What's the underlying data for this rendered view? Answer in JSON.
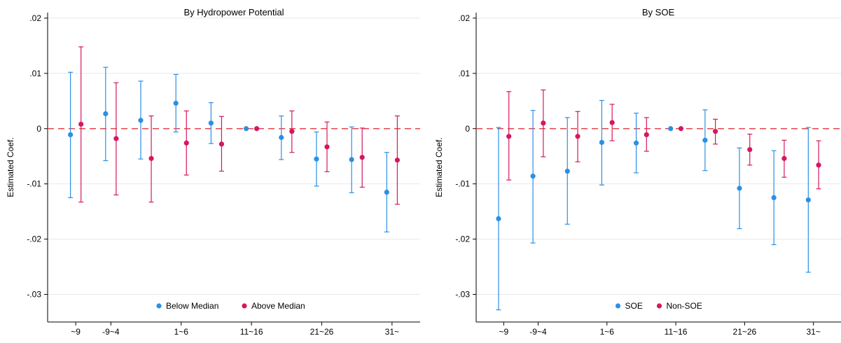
{
  "chart_data": [
    {
      "type": "scatter",
      "title": "By Hydropower Potential",
      "ylabel": "Estimated Coef.",
      "xlabel": "",
      "ylim": [
        -0.035,
        0.021
      ],
      "yticks": [
        0.02,
        0.01,
        0,
        -0.01,
        -0.02,
        -0.03
      ],
      "ytick_labels": [
        ".02",
        ".01",
        "0",
        "-.01",
        "-.02",
        "-.03"
      ],
      "xticks": [
        1,
        3,
        7,
        11,
        15,
        19
      ],
      "xtick_labels": [
        "~9",
        "-9~4",
        "1~6",
        "11~16",
        "21~26",
        "31~"
      ],
      "xlim": [
        -0.6,
        20.6
      ],
      "reference_line": 0,
      "legend_position": "bottom-inside",
      "series": [
        {
          "name": "Below Median",
          "color": "#2b8fe6",
          "points": [
            {
              "x": 0.7,
              "y": -0.0011,
              "lo": -0.0125,
              "hi": 0.0102
            },
            {
              "x": 2.7,
              "y": 0.0027,
              "lo": -0.0058,
              "hi": 0.0111
            },
            {
              "x": 4.7,
              "y": 0.0015,
              "lo": -0.0055,
              "hi": 0.0086
            },
            {
              "x": 6.7,
              "y": 0.0046,
              "lo": -0.0006,
              "hi": 0.0098
            },
            {
              "x": 8.7,
              "y": 0.001,
              "lo": -0.0027,
              "hi": 0.0047
            },
            {
              "x": 10.7,
              "y": 0.0,
              "lo": 0.0,
              "hi": 0.0
            },
            {
              "x": 12.7,
              "y": -0.0016,
              "lo": -0.0056,
              "hi": 0.0023
            },
            {
              "x": 14.7,
              "y": -0.0055,
              "lo": -0.0104,
              "hi": -0.0006
            },
            {
              "x": 16.7,
              "y": -0.0056,
              "lo": -0.0116,
              "hi": 0.0003
            },
            {
              "x": 18.7,
              "y": -0.0115,
              "lo": -0.0187,
              "hi": -0.0043
            }
          ]
        },
        {
          "name": "Above Median",
          "color": "#d6175f",
          "points": [
            {
              "x": 1.3,
              "y": 0.0008,
              "lo": -0.0133,
              "hi": 0.0148
            },
            {
              "x": 3.3,
              "y": -0.0018,
              "lo": -0.012,
              "hi": 0.0083
            },
            {
              "x": 5.3,
              "y": -0.0054,
              "lo": -0.0133,
              "hi": 0.0023
            },
            {
              "x": 7.3,
              "y": -0.0026,
              "lo": -0.0084,
              "hi": 0.0032
            },
            {
              "x": 9.3,
              "y": -0.0028,
              "lo": -0.0077,
              "hi": 0.0022
            },
            {
              "x": 11.3,
              "y": 0.0,
              "lo": 0.0,
              "hi": 0.0
            },
            {
              "x": 13.3,
              "y": -0.0005,
              "lo": -0.0043,
              "hi": 0.0032
            },
            {
              "x": 15.3,
              "y": -0.0033,
              "lo": -0.0078,
              "hi": 0.0012
            },
            {
              "x": 17.3,
              "y": -0.0052,
              "lo": -0.0106,
              "hi": 0.0001
            },
            {
              "x": 19.3,
              "y": -0.0057,
              "lo": -0.0137,
              "hi": 0.0023
            }
          ]
        }
      ]
    },
    {
      "type": "scatter",
      "title": "By SOE",
      "ylabel": "Estimated Coef.",
      "xlabel": "",
      "ylim": [
        -0.035,
        0.021
      ],
      "yticks": [
        0.02,
        0.01,
        0,
        -0.01,
        -0.02,
        -0.03
      ],
      "ytick_labels": [
        ".02",
        ".01",
        "0",
        "-.01",
        "-.02",
        "-.03"
      ],
      "xticks": [
        1,
        3,
        7,
        11,
        15,
        19
      ],
      "xtick_labels": [
        "~9",
        "-9~4",
        "1~6",
        "11~16",
        "21~26",
        "31~"
      ],
      "xlim": [
        -0.6,
        20.6
      ],
      "reference_line": 0,
      "legend_position": "bottom-inside",
      "series": [
        {
          "name": "SOE",
          "color": "#2b8fe6",
          "points": [
            {
              "x": 0.7,
              "y": -0.0163,
              "lo": -0.0328,
              "hi": 0.0002
            },
            {
              "x": 2.7,
              "y": -0.0086,
              "lo": -0.0207,
              "hi": 0.0033
            },
            {
              "x": 4.7,
              "y": -0.0077,
              "lo": -0.0173,
              "hi": 0.002
            },
            {
              "x": 6.7,
              "y": -0.0025,
              "lo": -0.0102,
              "hi": 0.0051
            },
            {
              "x": 8.7,
              "y": -0.0026,
              "lo": -0.008,
              "hi": 0.0028
            },
            {
              "x": 10.7,
              "y": 0.0,
              "lo": 0.0,
              "hi": 0.0
            },
            {
              "x": 12.7,
              "y": -0.0021,
              "lo": -0.0076,
              "hi": 0.0034
            },
            {
              "x": 14.7,
              "y": -0.0108,
              "lo": -0.0181,
              "hi": -0.0035
            },
            {
              "x": 16.7,
              "y": -0.0125,
              "lo": -0.021,
              "hi": -0.004
            },
            {
              "x": 18.7,
              "y": -0.0129,
              "lo": -0.026,
              "hi": 0.0002
            }
          ]
        },
        {
          "name": "Non-SOE",
          "color": "#d6175f",
          "points": [
            {
              "x": 1.3,
              "y": -0.0014,
              "lo": -0.0093,
              "hi": 0.0067
            },
            {
              "x": 3.3,
              "y": 0.001,
              "lo": -0.0051,
              "hi": 0.007
            },
            {
              "x": 5.3,
              "y": -0.0014,
              "lo": -0.006,
              "hi": 0.0031
            },
            {
              "x": 7.3,
              "y": 0.0011,
              "lo": -0.0022,
              "hi": 0.0044
            },
            {
              "x": 9.3,
              "y": -0.0011,
              "lo": -0.0041,
              "hi": 0.002
            },
            {
              "x": 11.3,
              "y": 0.0,
              "lo": 0.0,
              "hi": 0.0
            },
            {
              "x": 13.3,
              "y": -0.0005,
              "lo": -0.0028,
              "hi": 0.0017
            },
            {
              "x": 15.3,
              "y": -0.0038,
              "lo": -0.0066,
              "hi": -0.001
            },
            {
              "x": 17.3,
              "y": -0.0054,
              "lo": -0.0088,
              "hi": -0.0021
            },
            {
              "x": 19.3,
              "y": -0.0066,
              "lo": -0.0109,
              "hi": -0.0022
            }
          ]
        }
      ]
    }
  ]
}
